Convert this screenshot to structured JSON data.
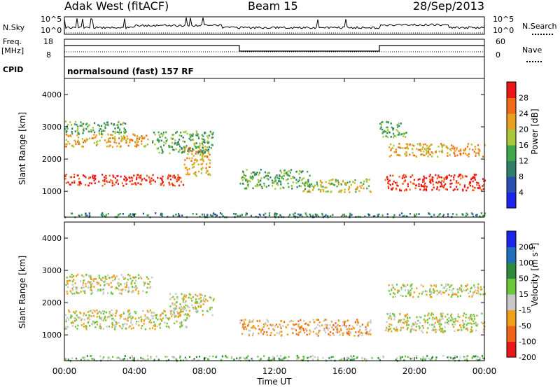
{
  "header": {
    "radar": "Adak West (fitACF)",
    "beam": "Beam 15",
    "date": "28/Sep/2013"
  },
  "top_panel": {
    "left_label": "N.Sky",
    "right_label": "N.Search",
    "left_ticks": [
      "10^5",
      "10^0"
    ],
    "right_ticks": [
      "10^5",
      "10^0"
    ]
  },
  "freq_panel": {
    "left_label": "Freq.",
    "left_unit": "[MHz]",
    "right_label": "Nave",
    "left_ticks": [
      "18",
      "8"
    ],
    "right_ticks": [
      "60",
      "0"
    ]
  },
  "cpid": {
    "label": "CPID",
    "value": "normalsound (fast) 157 RF"
  },
  "colors": {
    "power": [
      "#1b24e8",
      "#2a4fb0",
      "#2f7f6a",
      "#3ea84a",
      "#a8c83a",
      "#e8a020",
      "#f06a18",
      "#e81818"
    ],
    "velocity": [
      "#1b24e8",
      "#1f6fb8",
      "#2e8a3c",
      "#6cc83a",
      "#c8c8c8",
      "#f0a018",
      "#f06418",
      "#e81818"
    ]
  },
  "chart_data": [
    {
      "type": "heatmap",
      "name": "power",
      "xlabel": "",
      "ylabel": "Slant Range [km]",
      "ylim": [
        200,
        4500
      ],
      "x_ticks": [
        "00:00",
        "04:00",
        "08:00",
        "12:00",
        "16:00",
        "20:00",
        "00:00"
      ],
      "y_ticks": [
        1000,
        2000,
        3000,
        4000
      ],
      "colorbar": {
        "label": "Power [dB]",
        "ticks": [
          4,
          8,
          12,
          16,
          20,
          24,
          28
        ]
      },
      "regions": [
        {
          "hours": [
            0,
            6.8
          ],
          "range_km": [
            1200,
            1550
          ],
          "level": 7
        },
        {
          "hours": [
            6.8,
            8.3
          ],
          "range_km": [
            1500,
            2400
          ],
          "level": 5
        },
        {
          "hours": [
            0,
            4.8
          ],
          "range_km": [
            2400,
            2800
          ],
          "level": 5
        },
        {
          "hours": [
            0,
            3.5
          ],
          "range_km": [
            2800,
            3200
          ],
          "level": 3
        },
        {
          "hours": [
            5.0,
            8.5
          ],
          "range_km": [
            2200,
            2900
          ],
          "level": 3
        },
        {
          "hours": [
            10.0,
            14.0
          ],
          "range_km": [
            1100,
            1700
          ],
          "level": 3
        },
        {
          "hours": [
            13.5,
            17.5
          ],
          "range_km": [
            1000,
            1400
          ],
          "level": 4
        },
        {
          "hours": [
            18.3,
            24.0
          ],
          "range_km": [
            1050,
            1550
          ],
          "level": 7
        },
        {
          "hours": [
            18.5,
            24.0
          ],
          "range_km": [
            2100,
            2500
          ],
          "level": 5
        },
        {
          "hours": [
            18.0,
            19.5
          ],
          "range_km": [
            2700,
            3200
          ],
          "level": 3
        },
        {
          "hours": [
            0,
            24.0
          ],
          "range_km": [
            220,
            350
          ],
          "level": 2
        }
      ]
    },
    {
      "type": "heatmap",
      "name": "velocity",
      "xlabel": "Time UT",
      "ylabel": "Slant Range [km]",
      "ylim": [
        200,
        4500
      ],
      "x_ticks": [
        "00:00",
        "04:00",
        "08:00",
        "12:00",
        "16:00",
        "20:00",
        "00:00"
      ],
      "y_ticks": [
        1000,
        2000,
        3000,
        4000
      ],
      "colorbar": {
        "label": "Velocity [m s^-1]",
        "ticks": [
          200,
          100,
          50,
          15,
          -15,
          -50,
          -100,
          -200
        ]
      },
      "regions": [
        {
          "hours": [
            0,
            7.0
          ],
          "range_km": [
            1200,
            1800
          ],
          "level": 4
        },
        {
          "hours": [
            6.0,
            8.5
          ],
          "range_km": [
            1600,
            2300
          ],
          "level": 4
        },
        {
          "hours": [
            0,
            5.0
          ],
          "range_km": [
            2300,
            2900
          ],
          "level": 4
        },
        {
          "hours": [
            10.0,
            17.5
          ],
          "range_km": [
            1000,
            1500
          ],
          "level": 5
        },
        {
          "hours": [
            18.3,
            24.0
          ],
          "range_km": [
            1100,
            1700
          ],
          "level": 4
        },
        {
          "hours": [
            18.5,
            24.0
          ],
          "range_km": [
            2200,
            2600
          ],
          "level": 4
        },
        {
          "hours": [
            0,
            24.0
          ],
          "range_km": [
            220,
            380
          ],
          "level": 3
        }
      ]
    }
  ]
}
